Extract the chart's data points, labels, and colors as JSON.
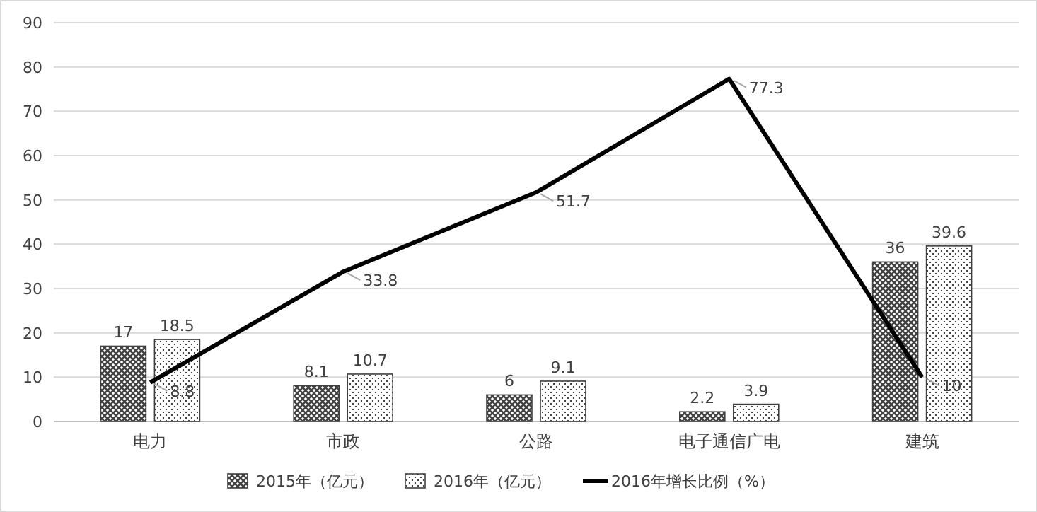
{
  "chart_data": {
    "type": "bar",
    "categories": [
      "电力",
      "市政",
      "公路",
      "电子通信广电",
      "建筑"
    ],
    "series": [
      {
        "name": "2015年（亿元）",
        "color": "#404040",
        "values": [
          17,
          8.1,
          6,
          2.2,
          36
        ]
      },
      {
        "name": "2016年（亿元）",
        "color": "#404040",
        "values": [
          18.5,
          10.7,
          9.1,
          3.9,
          39.6
        ]
      },
      {
        "name": "2016年增长比例（%）",
        "type": "line",
        "color": "#000000",
        "values": [
          8.8,
          33.8,
          51.7,
          77.3,
          10
        ]
      }
    ],
    "ylim": [
      0,
      90
    ],
    "yticks": [
      0,
      10,
      20,
      30,
      40,
      50,
      60,
      70,
      80,
      90
    ],
    "grid": "y",
    "legend": "bottom",
    "data_labels": true,
    "line_style": "solid"
  }
}
